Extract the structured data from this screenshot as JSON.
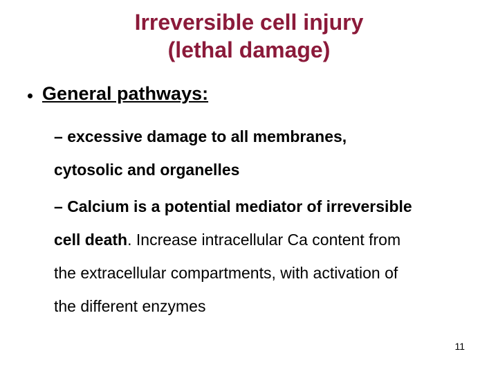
{
  "colors": {
    "title": "#8b1a3a",
    "text": "#000000",
    "background": "#ffffff"
  },
  "typography": {
    "title_fontsize": 32,
    "level1_fontsize": 27,
    "level2_fontsize": 23,
    "pagenum_fontsize": 14,
    "font_family": "Arial"
  },
  "title": {
    "line1": "Irreversible cell injury",
    "line2": "(lethal damage)"
  },
  "level1": {
    "text": "General pathways:"
  },
  "item1": {
    "dash": "– ",
    "bold1": "excessive damage to all membranes,",
    "cont1": "cytosolic and organelles"
  },
  "item2": {
    "dash": "– ",
    "bold1": "Calcium is a potential mediator of irreversible",
    "bold2": "cell death",
    "plain2": ". Increase intracellular Ca content from",
    "plain3": "the extracellular compartments, with activation of",
    "plain4": "the different enzymes"
  },
  "page_number": "11"
}
